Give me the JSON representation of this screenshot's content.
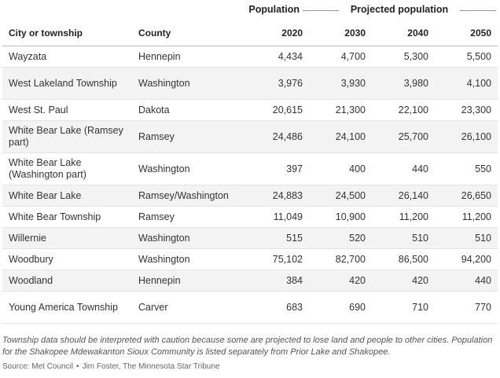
{
  "headers": {
    "group_population": "Population",
    "group_projected": "Projected population",
    "city": "City or township",
    "county": "County",
    "y2020": "2020",
    "y2030": "2030",
    "y2040": "2040",
    "y2050": "2050"
  },
  "rows": [
    {
      "city": "Wayzata",
      "county": "Hennepin",
      "p2020": "4,434",
      "p2030": "4,700",
      "p2040": "5,300",
      "p2050": "5,500"
    },
    {
      "city": "West Lakeland Township",
      "county": "Washington",
      "p2020": "3,976",
      "p2030": "3,930",
      "p2040": "3,980",
      "p2050": "4,100"
    },
    {
      "city": "West St. Paul",
      "county": "Dakota",
      "p2020": "20,615",
      "p2030": "21,300",
      "p2040": "22,100",
      "p2050": "23,300"
    },
    {
      "city": "White Bear Lake (Ramsey part)",
      "county": "Ramsey",
      "p2020": "24,486",
      "p2030": "24,100",
      "p2040": "25,700",
      "p2050": "26,100"
    },
    {
      "city": "White Bear Lake (Washington part)",
      "county": "Washington",
      "p2020": "397",
      "p2030": "400",
      "p2040": "440",
      "p2050": "550"
    },
    {
      "city": "White Bear Lake",
      "county": "Ramsey/Washington",
      "p2020": "24,883",
      "p2030": "24,500",
      "p2040": "26,140",
      "p2050": "26,650"
    },
    {
      "city": "White Bear Township",
      "county": "Ramsey",
      "p2020": "11,049",
      "p2030": "10,900",
      "p2040": "11,200",
      "p2050": "11,200"
    },
    {
      "city": "Willernie",
      "county": "Washington",
      "p2020": "515",
      "p2030": "520",
      "p2040": "510",
      "p2050": "510"
    },
    {
      "city": "Woodbury",
      "county": "Washington",
      "p2020": "75,102",
      "p2030": "82,700",
      "p2040": "86,500",
      "p2050": "94,200"
    },
    {
      "city": "Woodland",
      "county": "Hennepin",
      "p2020": "384",
      "p2030": "420",
      "p2040": "420",
      "p2050": "440"
    },
    {
      "city": "Young America Township",
      "county": "Carver",
      "p2020": "683",
      "p2030": "690",
      "p2040": "710",
      "p2050": "770"
    }
  ],
  "note": "Township data should be interpreted with caution because some are projected to lose land and people to other cities. Population for the Shakopee Mdewakanton Sioux Community is listed separately from Prior Lake and Shakopee.",
  "source": {
    "text": "Source: Met Council",
    "separator": "•",
    "credit": "Jim Foster, The Minnesota Star Tribune"
  }
}
